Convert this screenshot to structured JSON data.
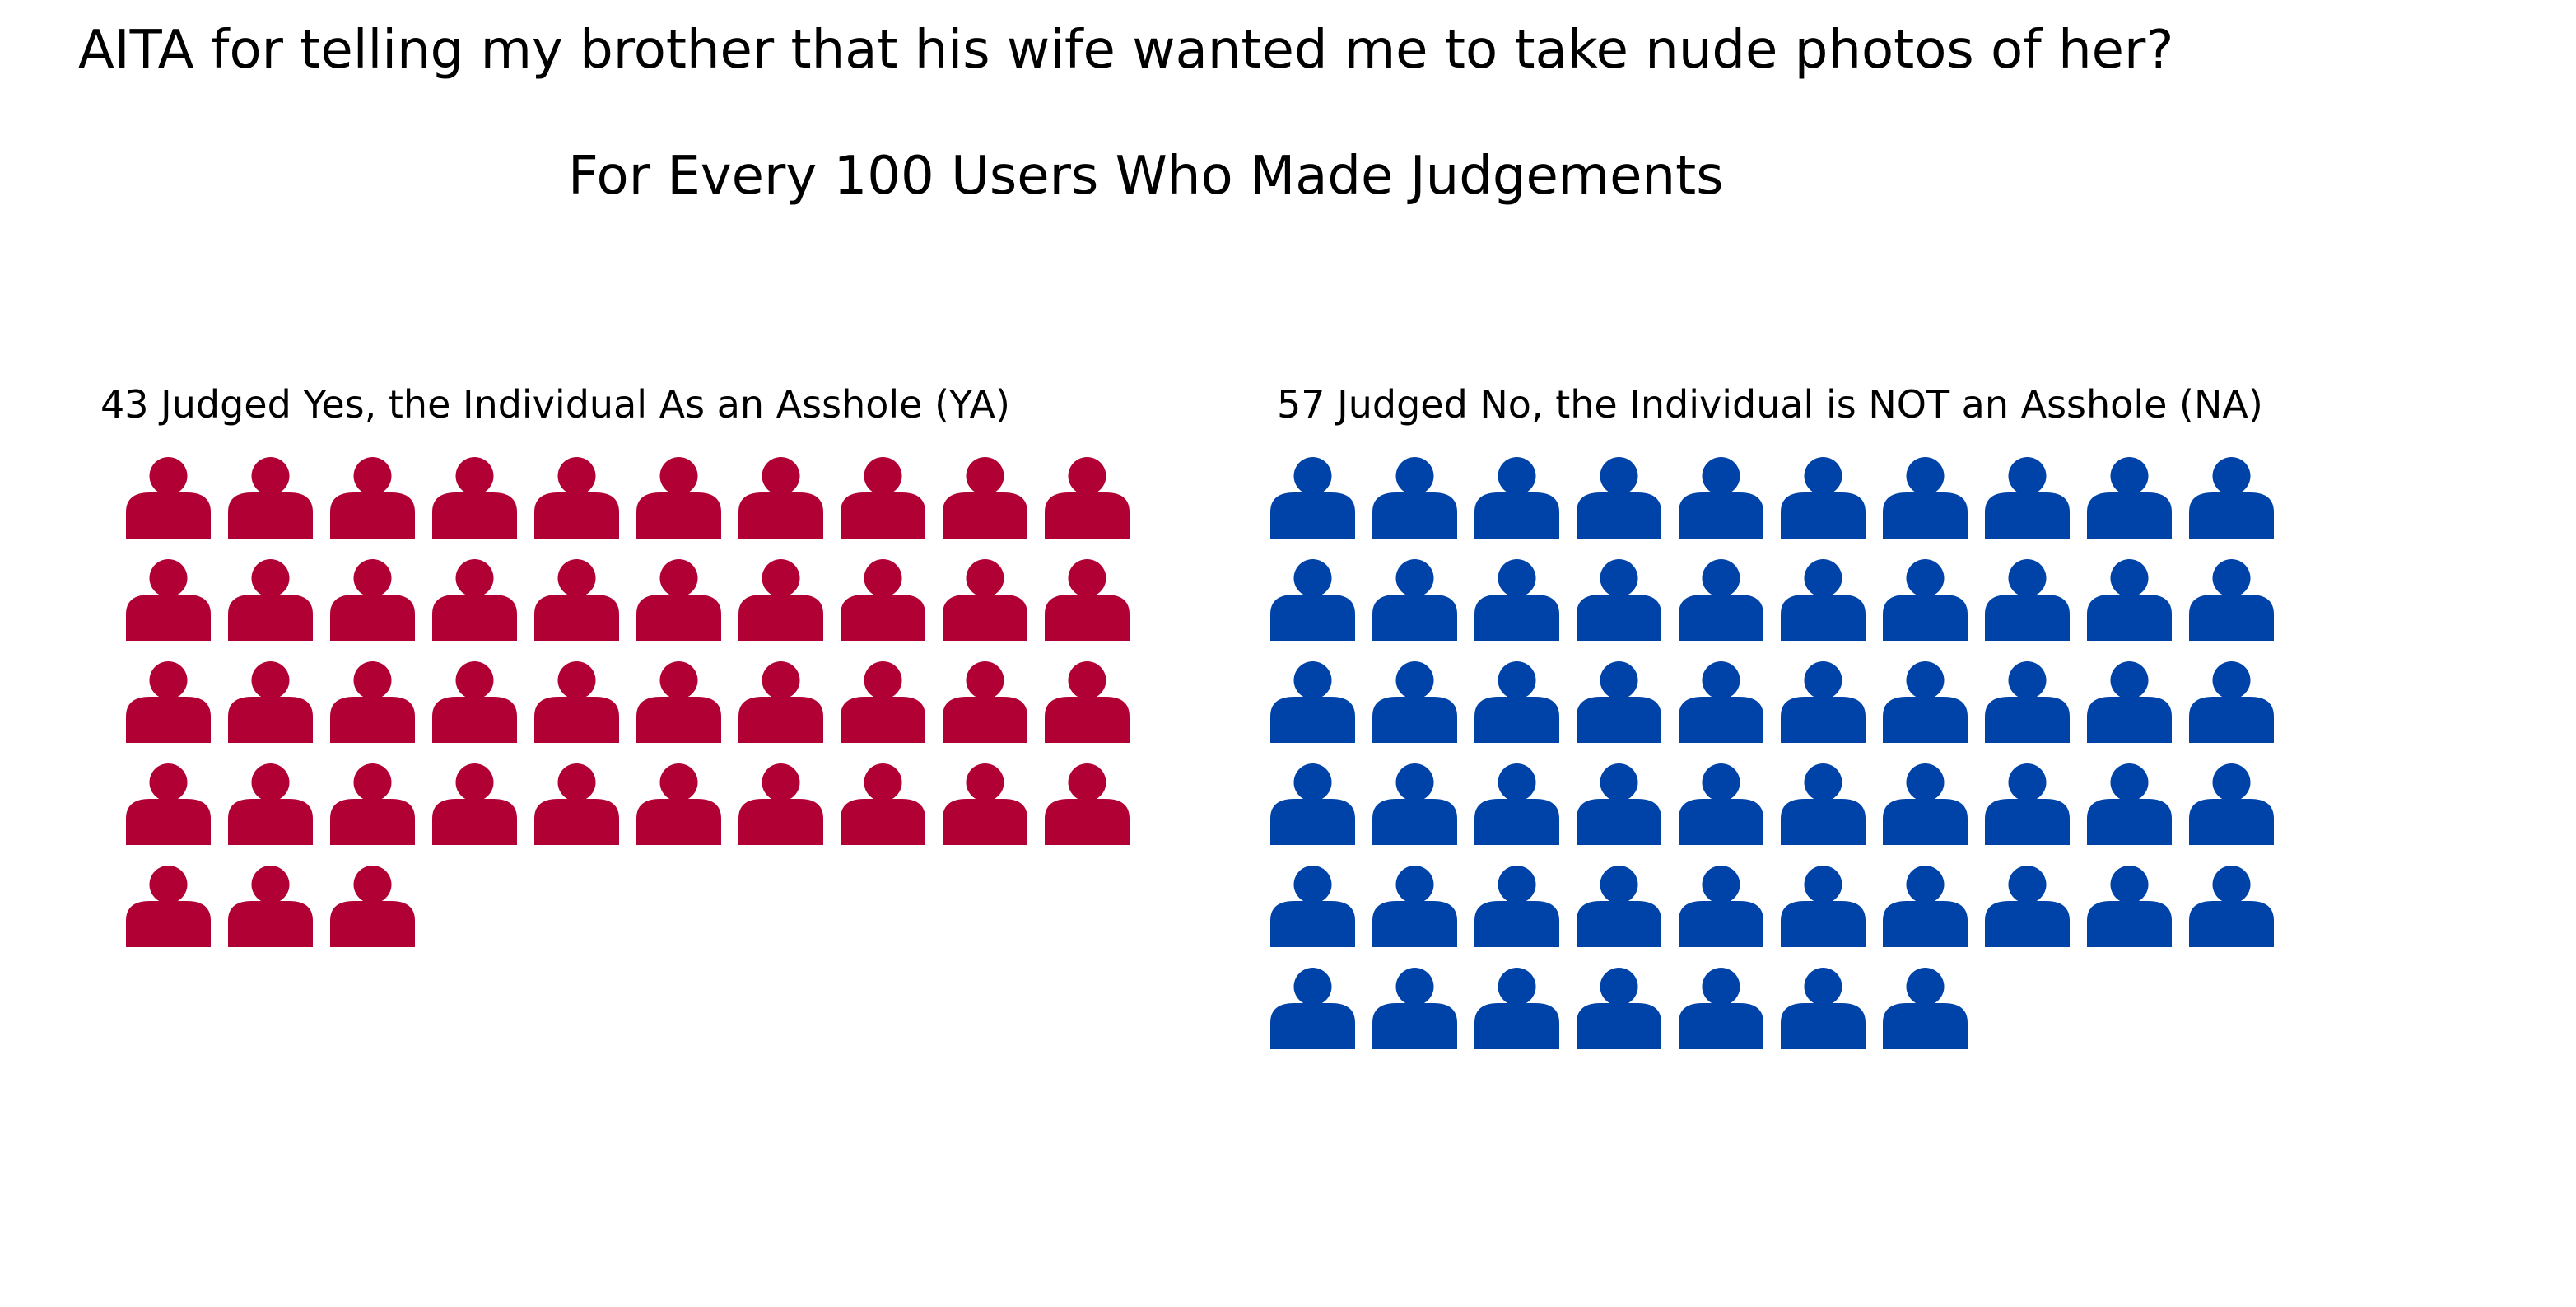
{
  "title": "AITA for telling my brother that his wife wanted me to take nude photos of her?",
  "subtitle": "For Every 100 Users Who Made Judgements",
  "colors": {
    "ya": "#b10034",
    "na": "#0043a8",
    "background": "#ffffff"
  },
  "icon": "person-icon",
  "chart_data": {
    "type": "waffle",
    "title": "AITA for telling my brother that his wife wanted me to take nude photos of her?",
    "subtitle": "For Every 100 Users Who Made Judgements",
    "total": 100,
    "icons_per_row": 10,
    "series": [
      {
        "name": "43 Judged Yes, the Individual As an Asshole (YA)",
        "value": 43,
        "color": "#b10034"
      },
      {
        "name": "57 Judged No, the Individual is NOT an Asshole (NA)",
        "value": 57,
        "color": "#0043a8"
      }
    ]
  }
}
